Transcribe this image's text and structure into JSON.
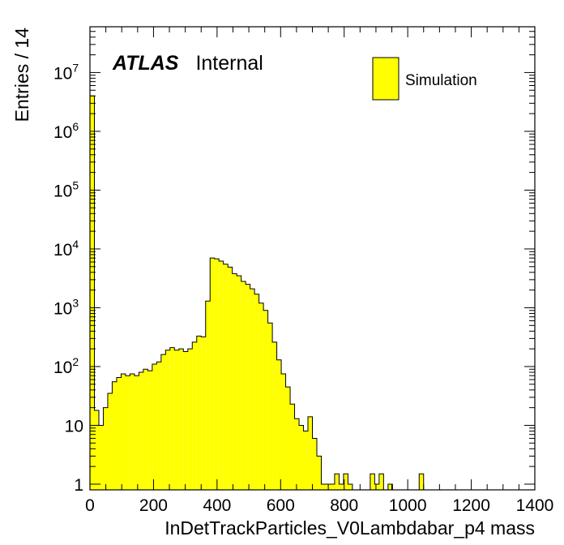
{
  "chart_data": {
    "type": "bar",
    "xlabel": "InDetTrackParticles_V0Lambdabar_p4 mass",
    "ylabel": "Entries / 14",
    "xlim": [
      0,
      1400
    ],
    "ylim": [
      0.8,
      60000000
    ],
    "log_y": true,
    "grid": false,
    "legend_position": "top-right",
    "bar_color": "#ffff00",
    "line_color": "#000000",
    "atlas_label": {
      "bold": "ATLAS",
      "normal": "Internal"
    },
    "x_ticks": [
      "0",
      "200",
      "400",
      "600",
      "800",
      "1000",
      "1200",
      "1400"
    ],
    "y_ticks": [
      {
        "base": "1",
        "exp": "",
        "value": 1
      },
      {
        "base": "10",
        "exp": "",
        "value": 10
      },
      {
        "base": "10",
        "exp": "2",
        "value": 100
      },
      {
        "base": "10",
        "exp": "3",
        "value": 1000
      },
      {
        "base": "10",
        "exp": "4",
        "value": 10000
      },
      {
        "base": "10",
        "exp": "5",
        "value": 100000
      },
      {
        "base": "10",
        "exp": "6",
        "value": 1000000
      },
      {
        "base": "10",
        "exp": "7",
        "value": 10000000
      }
    ],
    "bin_width": 14,
    "series": [
      {
        "name": "Simulation",
        "values": [
          4000000,
          18,
          10,
          20,
          35,
          55,
          65,
          75,
          70,
          75,
          70,
          80,
          90,
          85,
          110,
          120,
          160,
          190,
          210,
          190,
          200,
          180,
          200,
          260,
          330,
          320,
          1300,
          7000,
          6800,
          6200,
          5500,
          4900,
          3800,
          3500,
          2800,
          2500,
          2100,
          1700,
          1200,
          900,
          550,
          260,
          130,
          75,
          45,
          23,
          13,
          10,
          8,
          14,
          6,
          3,
          1,
          1,
          1,
          1.5,
          1,
          1.5,
          1,
          0.5,
          0.5,
          0.5,
          0.5,
          1.5,
          1,
          1.5,
          0.5,
          1,
          0,
          0,
          0,
          0,
          0,
          0,
          1.5,
          0,
          0,
          0,
          0,
          0,
          0,
          0,
          0,
          0,
          0,
          0,
          0,
          0,
          0,
          0,
          0,
          0,
          0,
          0,
          0,
          0,
          0,
          0,
          0,
          0
        ]
      }
    ]
  }
}
